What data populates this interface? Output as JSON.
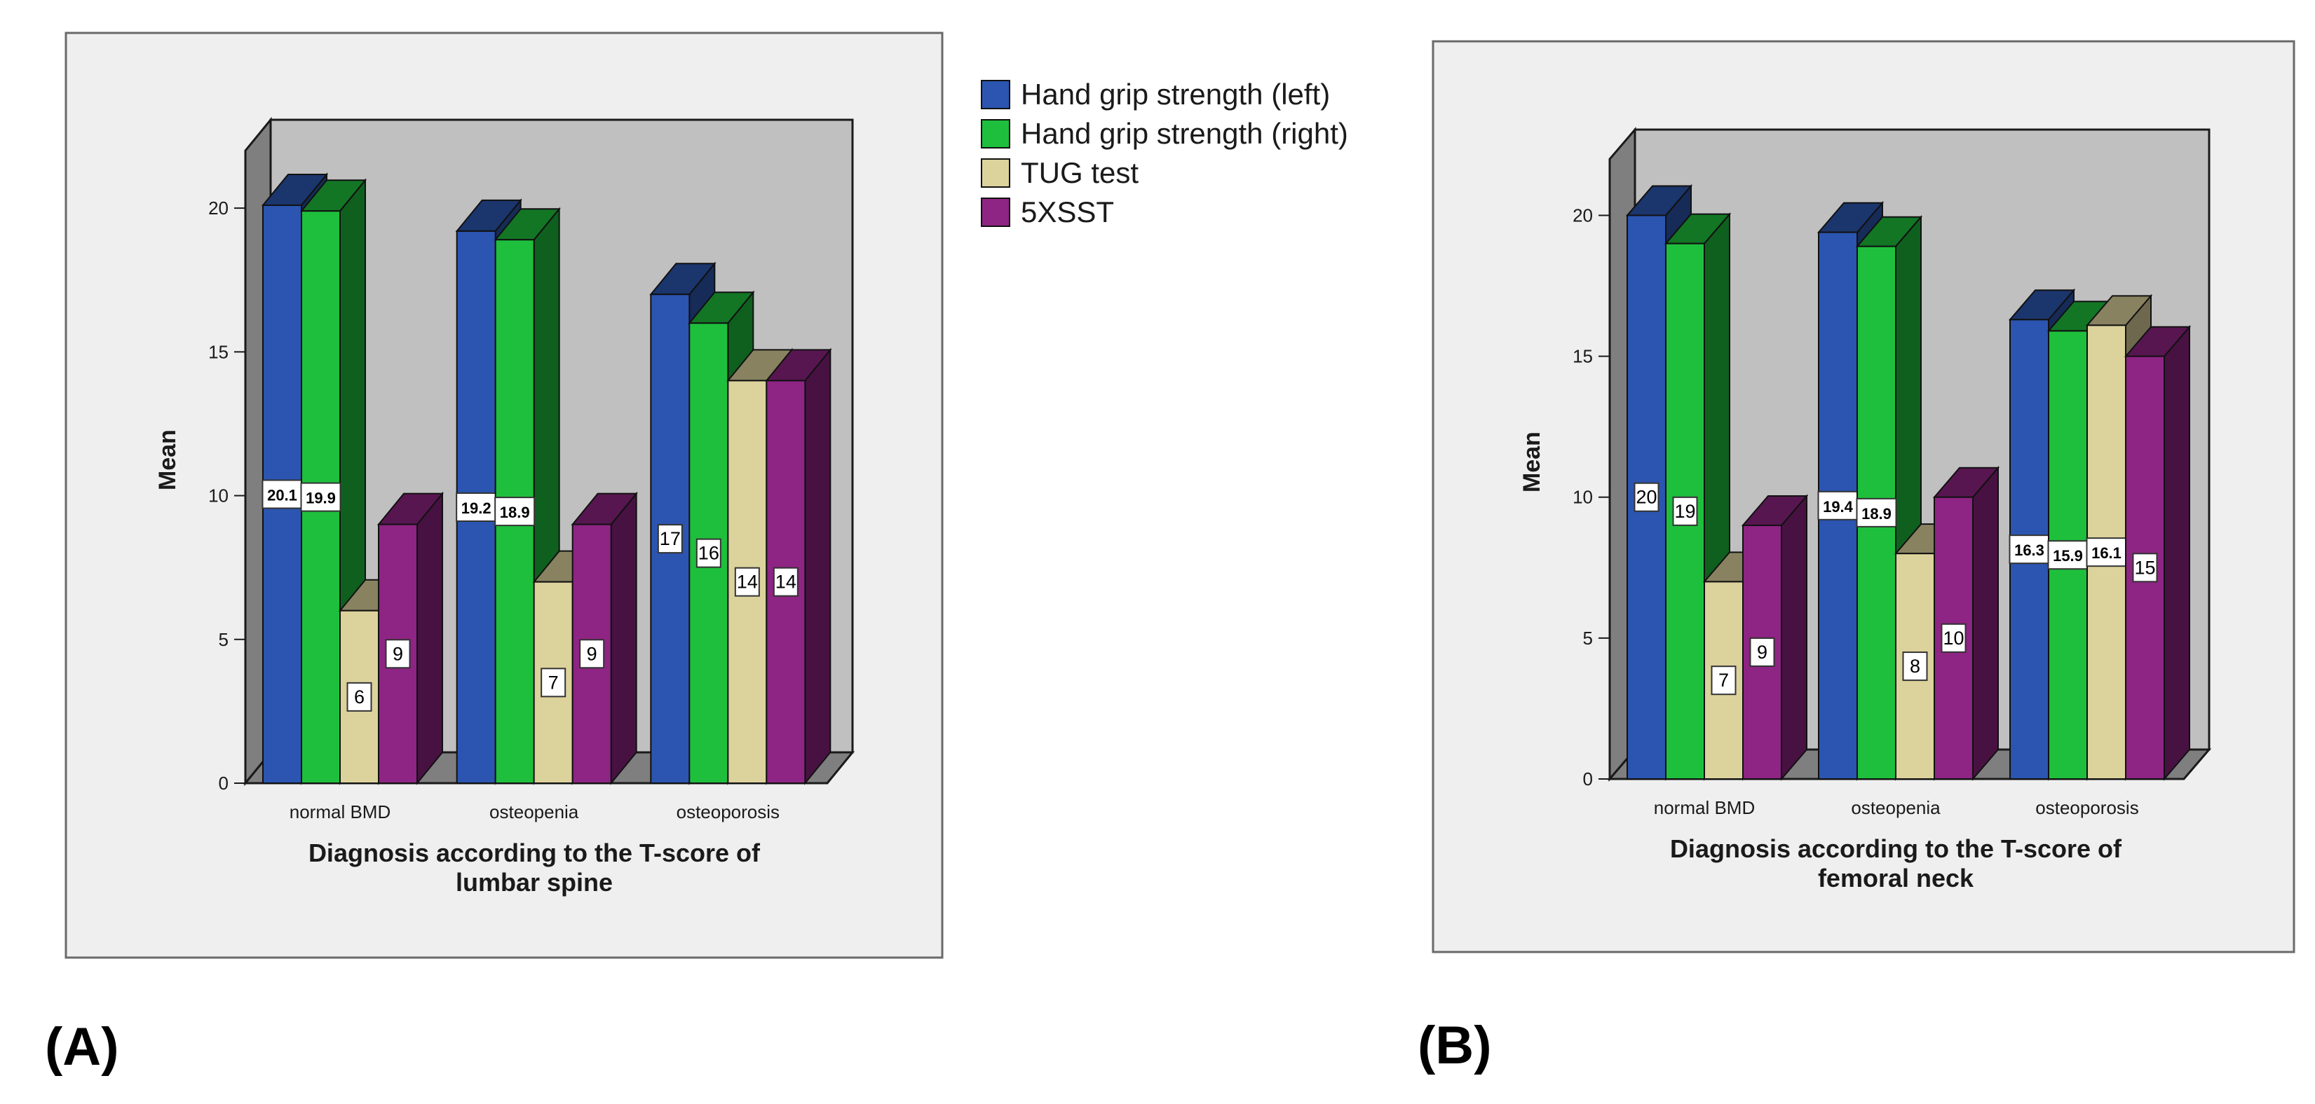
{
  "legend": {
    "items": [
      {
        "name": "Hand grip strength (left)",
        "color": "#2b55b0"
      },
      {
        "name": "Hand grip strength (right)",
        "color": "#1ebf3c"
      },
      {
        "name": "TUG test",
        "color": "#dcd29c"
      },
      {
        "name": "5XSST",
        "color": "#8e2483"
      }
    ]
  },
  "panel_labels": [
    "(A)",
    "(B)"
  ],
  "chart_data": [
    {
      "type": "bar",
      "ylabel": "Mean",
      "xlabel_lines": [
        "Diagnosis according to the T-score of",
        "lumbar spine"
      ],
      "ylim": [
        0,
        22
      ],
      "yticks": [
        "0",
        "5",
        "10",
        "15",
        "20"
      ],
      "categories": [
        "normal BMD",
        "osteopenia",
        "osteoporosis"
      ],
      "series": [
        {
          "name": "Hand grip strength (left)",
          "values": [
            20.1,
            19.2,
            17
          ],
          "labels": [
            "20.1",
            "19.2",
            "17"
          ]
        },
        {
          "name": "Hand grip strength (right)",
          "values": [
            19.9,
            18.9,
            16
          ],
          "labels": [
            "19.9",
            "18.9",
            "16"
          ]
        },
        {
          "name": "TUG test",
          "values": [
            6,
            7,
            14
          ],
          "labels": [
            "6",
            "7",
            "14"
          ]
        },
        {
          "name": "5XSST",
          "values": [
            9,
            9,
            14
          ],
          "labels": [
            "9",
            "9",
            "14"
          ]
        }
      ]
    },
    {
      "type": "bar",
      "ylabel": "Mean",
      "xlabel_lines": [
        "Diagnosis according to the T-score of",
        "femoral neck"
      ],
      "ylim": [
        0,
        22
      ],
      "yticks": [
        "0",
        "5",
        "10",
        "15",
        "20"
      ],
      "categories": [
        "normal BMD",
        "osteopenia",
        "osteoporosis"
      ],
      "series": [
        {
          "name": "Hand grip strength (left)",
          "values": [
            20,
            19.4,
            16.3
          ],
          "labels": [
            "20",
            "19.4",
            "16.3"
          ]
        },
        {
          "name": "Hand grip strength (right)",
          "values": [
            19,
            18.9,
            15.9
          ],
          "labels": [
            "19",
            "18.9",
            "15.9"
          ]
        },
        {
          "name": "TUG test",
          "values": [
            7,
            8,
            16.1
          ],
          "labels": [
            "7",
            "8",
            "16.1"
          ]
        },
        {
          "name": "5XSST",
          "values": [
            9,
            10,
            15
          ],
          "labels": [
            "9",
            "10",
            "15"
          ]
        }
      ]
    }
  ]
}
